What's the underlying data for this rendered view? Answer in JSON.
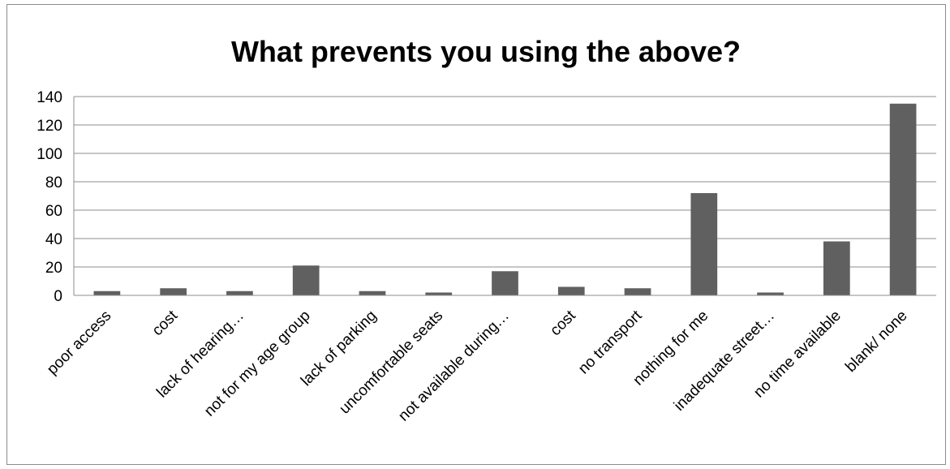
{
  "chart_data": {
    "type": "bar",
    "title": "What prevents you using the above?",
    "xlabel": "",
    "ylabel": "",
    "ylim": [
      0,
      140
    ],
    "ytick_step": 20,
    "yticks": [
      "0",
      "20",
      "40",
      "60",
      "80",
      "100",
      "120",
      "140"
    ],
    "grid": true,
    "legend": "none",
    "bar_color": "#606060",
    "grid_color": "#8c8c8c",
    "categories": [
      "poor access",
      "cost",
      "lack of hearing…",
      "not for my age group",
      "lack of parking",
      "uncomfortable seats",
      "not available during…",
      "cost",
      "no transport",
      "nothing for me",
      "inadequate street…",
      "no time available",
      "blank/ none"
    ],
    "values": [
      3,
      5,
      3,
      21,
      3,
      2,
      17,
      6,
      5,
      72,
      2,
      38,
      135
    ]
  }
}
